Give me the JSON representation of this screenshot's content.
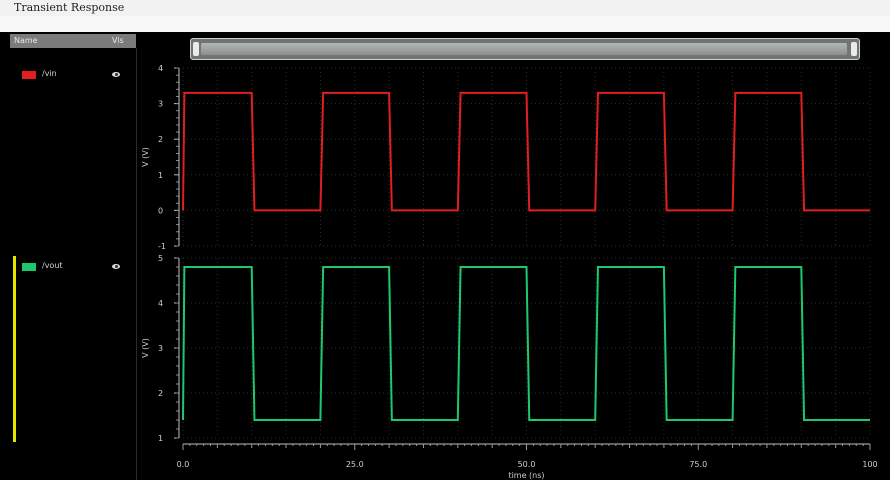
{
  "window": {
    "title": "Transient Response"
  },
  "trace_list": {
    "header_name": "Name",
    "header_vis": "Vis",
    "traces": [
      {
        "label": "/vin",
        "color": "#e21e1e",
        "icon": "eye-icon"
      },
      {
        "label": "/vout",
        "color": "#1ec96e",
        "icon": "eye-icon"
      }
    ]
  },
  "chart_data": [
    {
      "type": "line",
      "ylabel": "V (V)",
      "ylim": [
        -1,
        4
      ],
      "yticks": [
        "4",
        "3",
        "2",
        "1",
        "0",
        "-1"
      ],
      "grid": true,
      "series": [
        {
          "name": "/vin",
          "color": "#e21e1e",
          "x": [
            0,
            0.2,
            10,
            10.4,
            20,
            20.4,
            30,
            30.4,
            40,
            40.4,
            50,
            50.4,
            60,
            60.4,
            70,
            70.4,
            80,
            80.4,
            90,
            90.4,
            100
          ],
          "y": [
            0,
            3.3,
            3.3,
            0,
            0,
            3.3,
            3.3,
            0,
            0,
            3.3,
            3.3,
            0,
            0,
            3.3,
            3.3,
            0,
            0,
            3.3,
            3.3,
            0,
            0
          ]
        }
      ]
    },
    {
      "type": "line",
      "ylabel": "V (V)",
      "xlabel": "time (ns)",
      "ylim": [
        1,
        5
      ],
      "yticks": [
        "5",
        "4",
        "3",
        "2",
        "1"
      ],
      "xticks": [
        "0.0",
        "25.0",
        "50.0",
        "75.0",
        "100"
      ],
      "xlim": [
        0,
        100
      ],
      "grid": true,
      "series": [
        {
          "name": "/vout",
          "color": "#1ec96e",
          "x": [
            0,
            0.2,
            10,
            10.4,
            20,
            20.4,
            30,
            30.4,
            40,
            40.4,
            50,
            50.4,
            60,
            60.4,
            70,
            70.4,
            80,
            80.4,
            90,
            90.4,
            100
          ],
          "y": [
            1.4,
            4.8,
            4.8,
            1.4,
            1.4,
            4.8,
            4.8,
            1.4,
            1.4,
            4.8,
            4.8,
            1.4,
            1.4,
            4.8,
            4.8,
            1.4,
            1.4,
            4.8,
            4.8,
            1.4,
            1.4
          ]
        }
      ]
    }
  ]
}
